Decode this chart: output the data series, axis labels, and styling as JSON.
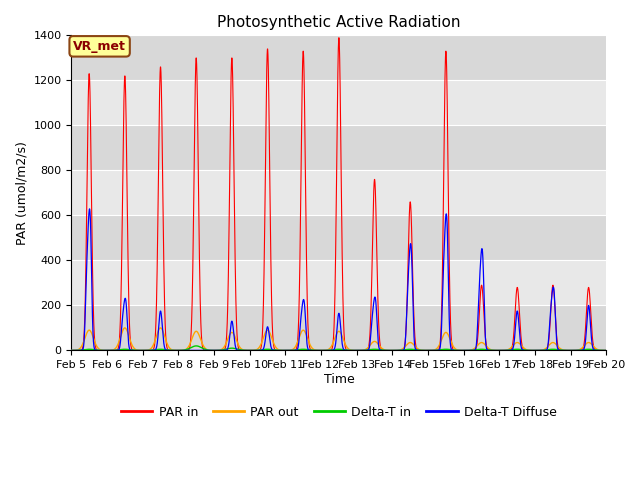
{
  "title": "Photosynthetic Active Radiation",
  "xlabel": "Time",
  "ylabel": "PAR (umol/m2/s)",
  "ylim": [
    0,
    1400
  ],
  "label_box": "VR_met",
  "legend_labels": [
    "PAR in",
    "PAR out",
    "Delta-T in",
    "Delta-T Diffuse"
  ],
  "colors": {
    "PAR_in": "#FF0000",
    "PAR_out": "#FFA500",
    "Delta_T_in": "#00CC00",
    "Delta_T_Diffuse": "#0000FF"
  },
  "background_color": "#E8E8E8",
  "band_colors": [
    "#D8D8D8",
    "#E8E8E8"
  ],
  "xtick_labels": [
    "Feb 5",
    "Feb 6",
    "Feb 7",
    "Feb 8",
    "Feb 9",
    "Feb 10",
    "Feb 11",
    "Feb 12",
    "Feb 13",
    "Feb 14",
    "Feb 15",
    "Feb 16",
    "Feb 17",
    "Feb 18",
    "Feb 19",
    "Feb 20"
  ],
  "title_fontsize": 11,
  "axis_fontsize": 9,
  "tick_fontsize": 8,
  "daily_peaks_PAR_in": [
    1230,
    1220,
    1260,
    1300,
    1300,
    1340,
    1330,
    1390,
    760,
    660,
    1330,
    290,
    280,
    290,
    280
  ],
  "daily_peaks_PAR_out": [
    90,
    100,
    100,
    85,
    80,
    90,
    90,
    85,
    40,
    35,
    80,
    35,
    35,
    35,
    35
  ],
  "daily_peaks_Delta_T_in": [
    5,
    5,
    5,
    20,
    10,
    5,
    5,
    5,
    5,
    5,
    5,
    5,
    5,
    5,
    5
  ],
  "daily_peaks_Delta_T_Diffuse": [
    570,
    210,
    175,
    0,
    130,
    105,
    205,
    165,
    215,
    430,
    550,
    410,
    175,
    255,
    200
  ]
}
